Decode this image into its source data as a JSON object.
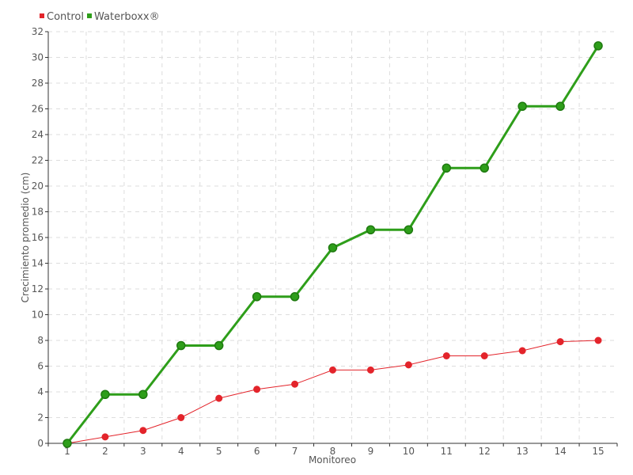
{
  "chart_data": {
    "type": "line",
    "title": "",
    "xlabel": "Monitoreo",
    "ylabel": "Crecimiento promedio (cm)",
    "x": [
      1,
      2,
      3,
      4,
      5,
      6,
      7,
      8,
      9,
      10,
      11,
      12,
      13,
      14,
      15
    ],
    "xlim": [
      0.5,
      15.5
    ],
    "ylim": [
      0,
      32
    ],
    "yticks": [
      0,
      2,
      4,
      6,
      8,
      10,
      12,
      14,
      16,
      18,
      20,
      22,
      24,
      26,
      28,
      30,
      32
    ],
    "grid": true,
    "legend_position": "top-left",
    "series": [
      {
        "name": "Control",
        "color": "#e3242b",
        "values": [
          0,
          0.5,
          1.0,
          2.0,
          3.5,
          4.2,
          4.6,
          5.7,
          5.7,
          6.1,
          6.8,
          6.8,
          7.2,
          7.9,
          8.0
        ]
      },
      {
        "name": "Waterboxx®",
        "color": "#2e9e1a",
        "values": [
          0,
          3.8,
          3.8,
          7.6,
          7.6,
          11.4,
          11.4,
          15.2,
          16.6,
          16.6,
          21.4,
          21.4,
          26.2,
          26.2,
          30.9
        ]
      }
    ]
  }
}
